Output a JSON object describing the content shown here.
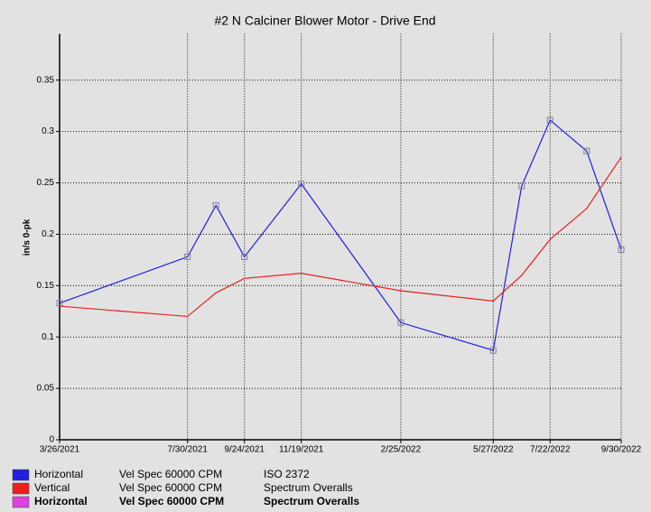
{
  "chart_data": {
    "type": "line",
    "title": "#2 N Calciner Blower Motor - Drive End",
    "y_label": "in/s 0-pk",
    "x": [
      "2021-03-26",
      "2021-07-30",
      "2021-08-27",
      "2021-09-24",
      "2021-11-19",
      "2022-02-25",
      "2022-05-27",
      "2022-06-24",
      "2022-07-22",
      "2022-08-27",
      "2022-09-30"
    ],
    "xlim": [
      "2021-03-26",
      "2022-09-30"
    ],
    "xticks": [
      {
        "value": "2021-03-26",
        "label": "3/26/2021"
      },
      {
        "value": "2021-07-30",
        "label": "7/30/2021"
      },
      {
        "value": "2021-09-24",
        "label": "9/24/2021"
      },
      {
        "value": "2021-11-19",
        "label": "11/19/2021"
      },
      {
        "value": "2022-02-25",
        "label": "2/25/2022"
      },
      {
        "value": "2022-05-27",
        "label": "5/27/2022"
      },
      {
        "value": "2022-07-22",
        "label": "7/22/2022"
      },
      {
        "value": "2022-09-30",
        "label": "9/30/2022"
      }
    ],
    "ylim": [
      0,
      0.395
    ],
    "yticks": [
      0,
      0.05,
      0.1,
      0.15,
      0.2,
      0.25,
      0.3,
      0.35
    ],
    "grid": true,
    "series": [
      {
        "name": "Horizontal",
        "point": "Vel Spec 60000 CPM",
        "source": "ISO 2372",
        "color": "#2020e0",
        "marker": "square",
        "bold": false,
        "values": [
          0.133,
          0.178,
          0.228,
          0.178,
          0.249,
          0.114,
          0.087,
          0.247,
          0.311,
          0.281,
          0.185
        ]
      },
      {
        "name": "Vertical",
        "point": "Vel Spec 60000 CPM",
        "source": "Spectrum Overalls",
        "color": "#e82020",
        "marker": "none",
        "bold": false,
        "values": [
          0.13,
          0.12,
          0.143,
          0.157,
          0.162,
          0.145,
          0.135,
          0.16,
          0.195,
          0.225,
          0.275
        ]
      },
      {
        "name": "Horizontal",
        "point": "Vel Spec 60000 CPM",
        "source": "Spectrum Overalls",
        "color": "#e040e0",
        "marker": "none",
        "bold": true,
        "values": [
          null,
          null,
          null,
          null,
          null,
          null,
          null,
          null,
          null,
          null,
          null
        ]
      }
    ]
  }
}
